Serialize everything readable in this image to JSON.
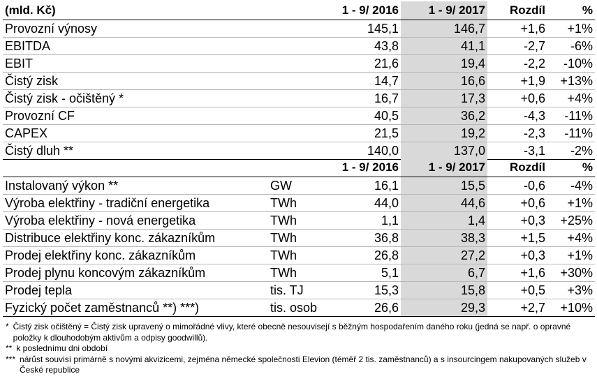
{
  "financial": {
    "header": {
      "label": "(mld. Kč)",
      "col1": "1 - 9/ 2016",
      "col2": "1 - 9/ 2017",
      "diff": "Rozdíl",
      "pct": "%"
    },
    "rows": [
      {
        "label": "Provozní výnosy",
        "v2016": "145,1",
        "v2017": "146,7",
        "diff": "+1,6",
        "pct": "+1%"
      },
      {
        "label": "EBITDA",
        "v2016": "43,8",
        "v2017": "41,1",
        "diff": "-2,7",
        "pct": "-6%"
      },
      {
        "label": "EBIT",
        "v2016": "21,6",
        "v2017": "19,4",
        "diff": "-2,2",
        "pct": "-10%"
      },
      {
        "label": "Čistý zisk",
        "v2016": "14,7",
        "v2017": "16,6",
        "diff": "+1,9",
        "pct": "+13%"
      },
      {
        "label": "Čistý zisk - očištěný *",
        "v2016": "16,7",
        "v2017": "17,3",
        "diff": "+0,6",
        "pct": "+4%"
      },
      {
        "label": "Provozní CF",
        "v2016": "40,5",
        "v2017": "36,2",
        "diff": "-4,3",
        "pct": "-11%"
      },
      {
        "label": "CAPEX",
        "v2016": "21,5",
        "v2017": "19,2",
        "diff": "-2,3",
        "pct": "-11%"
      },
      {
        "label": "Čistý dluh **",
        "v2016": "140,0",
        "v2017": "137,0",
        "diff": "-3,1",
        "pct": "-2%"
      }
    ]
  },
  "operational": {
    "header": {
      "col1": "1 - 9/ 2016",
      "col2": "1 - 9/ 2017",
      "diff": "Rozdíl",
      "pct": "%"
    },
    "rows": [
      {
        "label": "Instalovaný výkon **",
        "unit": "GW",
        "v2016": "16,1",
        "v2017": "15,5",
        "diff": "-0,6",
        "pct": "-4%"
      },
      {
        "label": "Výroba elektřiny - tradiční energetika",
        "unit": "TWh",
        "v2016": "44,0",
        "v2017": "44,6",
        "diff": "+0,6",
        "pct": "+1%"
      },
      {
        "label": "Výroba elektřiny - nová energetika",
        "unit": "TWh",
        "v2016": "1,1",
        "v2017": "1,4",
        "diff": "+0,3",
        "pct": "+25%"
      },
      {
        "label": "Distribuce elektřiny konc. zákazníkům",
        "unit": "TWh",
        "v2016": "36,8",
        "v2017": "38,3",
        "diff": "+1,5",
        "pct": "+4%"
      },
      {
        "label": "Prodej elektřiny konc. zákazníkům",
        "unit": "TWh",
        "v2016": "26,8",
        "v2017": "27,2",
        "diff": "+0,3",
        "pct": "+1%"
      },
      {
        "label": "Prodej plynu koncovým zákazníkům",
        "unit": "TWh",
        "v2016": "5,1",
        "v2017": "6,7",
        "diff": "+1,6",
        "pct": "+30%"
      },
      {
        "label": "Prodej tepla",
        "unit": "tis. TJ",
        "v2016": "15,3",
        "v2017": "15,8",
        "diff": "+0,5",
        "pct": "+3%"
      },
      {
        "label": "Fyzický počet zaměstnanců **) ***)",
        "unit": "tis. osob",
        "v2016": "26,6",
        "v2017": "29,3",
        "diff": "+2,7",
        "pct": "+10%"
      }
    ]
  },
  "footnotes": [
    {
      "mark": "*",
      "text": "Čistý zisk očištěný = Čistý zisk upravený o mimořádné vlivy, které obecně nesouvisejí s běžným hospodařením daného roku (jedná se např. o opravné položky k dlouhodobým aktivům a odpisy goodwillů)."
    },
    {
      "mark": "**",
      "text": "k poslednímu dni období"
    },
    {
      "mark": "***",
      "text": "nárůst souvisí primárně s novými akvizicemi, zejména německé společnosti Elevion (téměř 2 tis. zaměstnanců) a s insourcingem nakupovaných služeb v České republice"
    }
  ],
  "colors": {
    "highlight_column": "#d9d9d9",
    "row_border": "#b8b8b8"
  }
}
